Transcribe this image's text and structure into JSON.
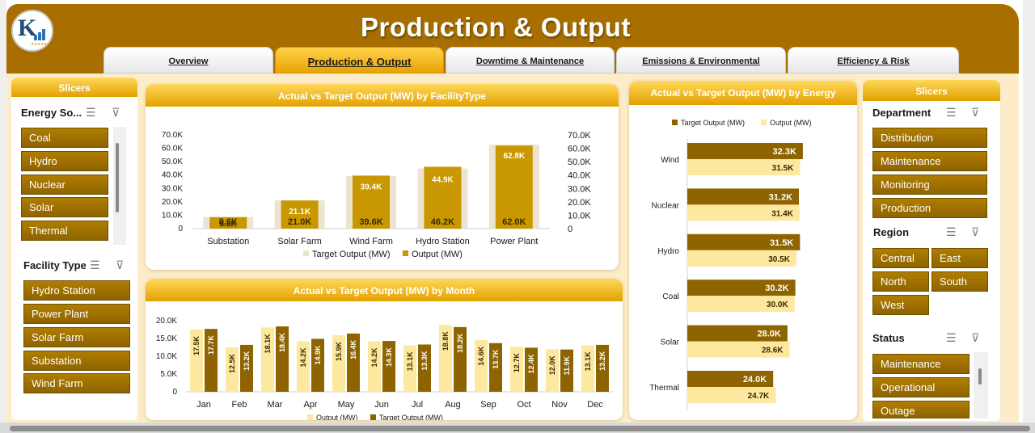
{
  "header": {
    "title": "Production & Output",
    "tabs": [
      "Overview",
      "Production & Output",
      "Downtime & Maintenance",
      "Emissions & Environmental",
      "Efficiency & Risk"
    ],
    "active_tab": 1
  },
  "left_slicers": {
    "header": "Slicers",
    "energy_source": {
      "title": "Energy So...",
      "items": [
        "Coal",
        "Hydro",
        "Nuclear",
        "Solar",
        "Thermal"
      ]
    },
    "facility_type": {
      "title": "Facility Type",
      "items": [
        "Hydro Station",
        "Power Plant",
        "Solar Farm",
        "Substation",
        "Wind Farm"
      ]
    }
  },
  "right_slicers": {
    "header": "Slicers",
    "department": {
      "title": "Department",
      "items": [
        "Distribution",
        "Maintenance",
        "Monitoring",
        "Production"
      ]
    },
    "region": {
      "title": "Region",
      "items": [
        "Central",
        "East",
        "North",
        "South",
        "West"
      ]
    },
    "status": {
      "title": "Status",
      "items": [
        "Maintenance",
        "Operational",
        "Outage"
      ]
    }
  },
  "colors": {
    "dark_gold": "#a86f00",
    "bar_dark": "#8e6400",
    "bar_light": "#fde8a0",
    "target_bg": "#ede3d2",
    "output_gold": "#c99700"
  },
  "chart_data": [
    {
      "type": "bar",
      "title": "Actual vs Target Output (MW) by FacilityType",
      "categories": [
        "Substation",
        "Solar Farm",
        "Wind Farm",
        "Hydro Station",
        "Power Plant"
      ],
      "series": [
        {
          "name": "Target Output (MW)",
          "values": [
            8.6,
            21.1,
            39.4,
            44.9,
            62.8
          ],
          "labels": [
            "8.6K",
            "21.1K",
            "39.4K",
            "44.9K",
            "62.8K"
          ]
        },
        {
          "name": "Output (MW)",
          "values": [
            8.6,
            21.0,
            39.6,
            46.2,
            62.0
          ],
          "labels": [
            "8.6K",
            "21.0K",
            "39.6K",
            "46.2K",
            "62.0K"
          ]
        }
      ],
      "y_ticks": [
        "0",
        "10.0K",
        "20.0K",
        "30.0K",
        "40.0K",
        "50.0K",
        "60.0K",
        "70.0K"
      ],
      "ylim": [
        0,
        70
      ],
      "legend": "bottom"
    },
    {
      "type": "bar",
      "title": "Actual vs Target Output (MW) by  Month",
      "categories": [
        "Jan",
        "Feb",
        "Mar",
        "Apr",
        "May",
        "Jun",
        "Jul",
        "Aug",
        "Sep",
        "Oct",
        "Nov",
        "Dec"
      ],
      "series": [
        {
          "name": "Output (MW)",
          "values": [
            17.5,
            12.5,
            18.1,
            14.2,
            15.9,
            14.2,
            13.1,
            18.8,
            14.6,
            12.7,
            12.0,
            13.1
          ],
          "labels": [
            "17.5K",
            "12.5K",
            "18.1K",
            "14.2K",
            "15.9K",
            "14.2K",
            "13.1K",
            "18.8K",
            "14.6K",
            "12.7K",
            "12.0K",
            "13.1K"
          ]
        },
        {
          "name": "Target Output (MW)",
          "values": [
            17.7,
            13.2,
            18.4,
            14.9,
            16.4,
            14.3,
            13.3,
            18.2,
            13.7,
            12.4,
            11.9,
            13.2
          ],
          "labels": [
            "17.7K",
            "13.2K",
            "18.4K",
            "14.9K",
            "16.4K",
            "14.3K",
            "13.3K",
            "18.2K",
            "13.7K",
            "12.4K",
            "11.9K",
            "13.2K"
          ]
        }
      ],
      "y_ticks": [
        "0",
        "5.0K",
        "10.0K",
        "15.0K",
        "20.0K"
      ],
      "ylim": [
        0,
        20
      ],
      "legend": "bottom"
    },
    {
      "type": "bar",
      "orientation": "horizontal",
      "title": "Actual vs Target Output (MW) by Energy",
      "categories": [
        "Wind",
        "Nuclear",
        "Hydro",
        "Coal",
        "Solar",
        "Thermal"
      ],
      "series": [
        {
          "name": "Target Output (MW)",
          "values": [
            32.3,
            31.2,
            31.5,
            30.2,
            28.0,
            24.0
          ],
          "labels": [
            "32.3K",
            "31.2K",
            "31.5K",
            "30.2K",
            "28.0K",
            "24.0K"
          ]
        },
        {
          "name": "Output (MW)",
          "values": [
            31.5,
            31.4,
            30.5,
            30.0,
            28.6,
            24.7
          ],
          "labels": [
            "31.5K",
            "31.4K",
            "30.5K",
            "30.0K",
            "28.6K",
            "24.7K"
          ]
        }
      ],
      "legend": "top"
    }
  ]
}
